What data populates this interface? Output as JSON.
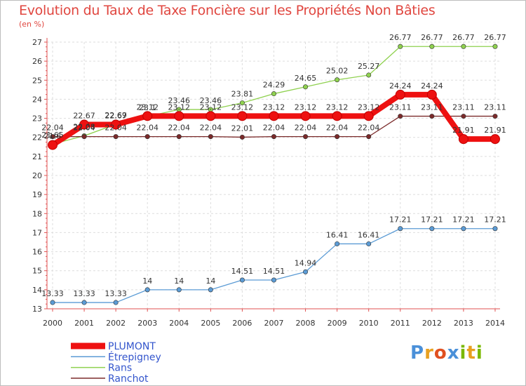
{
  "title": "Evolution du Taux de Taxe Foncière sur les Propriétés Non Bâties",
  "unit": "(en %)",
  "logo": {
    "text": "Proxiti",
    "letters": [
      "P",
      "r",
      "o",
      "x",
      "i",
      "t",
      "i"
    ],
    "colors": [
      "#4a90d9",
      "#e8a020",
      "#e05020",
      "#4a90d9",
      "#7ab800",
      "#e8a020",
      "#7ab800"
    ]
  },
  "chart_data": {
    "type": "line",
    "title": "Evolution du Taux de Taxe Foncière sur les Propriétés Non Bâties",
    "ylabel": "(en %)",
    "x": [
      "2000",
      "2001",
      "2002",
      "2003",
      "2004",
      "2005",
      "2006",
      "2007",
      "2008",
      "2009",
      "2010",
      "2011",
      "2012",
      "2013",
      "2014"
    ],
    "ylim": [
      13,
      27
    ],
    "yticks": [
      "13",
      "14",
      "15",
      "16",
      "17",
      "18",
      "19",
      "20",
      "21",
      "22",
      "23",
      "24",
      "25",
      "26",
      "27"
    ],
    "legend_position": "bottom-left",
    "series": [
      {
        "name": "PLUMONT",
        "color": "#ee1111",
        "emphasis": true,
        "values": [
          21.6,
          22.67,
          22.67,
          23.12,
          23.12,
          23.12,
          23.12,
          23.12,
          23.12,
          23.12,
          23.12,
          24.24,
          24.24,
          21.91,
          21.91
        ],
        "labels": [
          "21.6",
          "22.67",
          "22.67",
          "23.12",
          "23.12",
          "23.12",
          "23.12",
          "23.12",
          "23.12",
          "23.12",
          "23.12",
          "24.24",
          "24.24",
          "21.91",
          "21.91"
        ]
      },
      {
        "name": "Étrepigney",
        "color": "#5b9bd5",
        "values": [
          13.33,
          13.33,
          13.33,
          14,
          14,
          14,
          14.51,
          14.51,
          14.94,
          16.41,
          16.41,
          17.21,
          17.21,
          17.21,
          17.21
        ],
        "labels": [
          "13.33",
          "13.33",
          "13.33",
          "14",
          "14",
          "14",
          "14.51",
          "14.51",
          "14.94",
          "16.41",
          "16.41",
          "17.21",
          "17.21",
          "17.21",
          "17.21"
        ]
      },
      {
        "name": "Rans",
        "color": "#8fd14f",
        "values": [
          21.65,
          22.08,
          22.69,
          23.1,
          23.46,
          23.46,
          23.81,
          24.29,
          24.65,
          25.02,
          25.27,
          26.77,
          26.77,
          26.77,
          26.77
        ],
        "labels": [
          "21.65",
          "22.08",
          "22.69",
          "23.1",
          "23.46",
          "23.46",
          "23.81",
          "24.29",
          "24.65",
          "25.02",
          "25.27",
          "26.77",
          "26.77",
          "26.77",
          "26.77"
        ]
      },
      {
        "name": "Ranchot",
        "color": "#7b2a2a",
        "values": [
          22.04,
          22.04,
          22.04,
          22.04,
          22.04,
          22.04,
          22.01,
          22.04,
          22.04,
          22.04,
          22.04,
          23.11,
          23.11,
          23.11,
          23.11
        ],
        "labels": [
          "22.04",
          "22.04",
          "22.04",
          "22.04",
          "22.04",
          "22.04",
          "22.01",
          "22.04",
          "22.04",
          "22.04",
          "22.04",
          "23.11",
          "23.11",
          "23.11",
          "23.11"
        ]
      }
    ]
  }
}
